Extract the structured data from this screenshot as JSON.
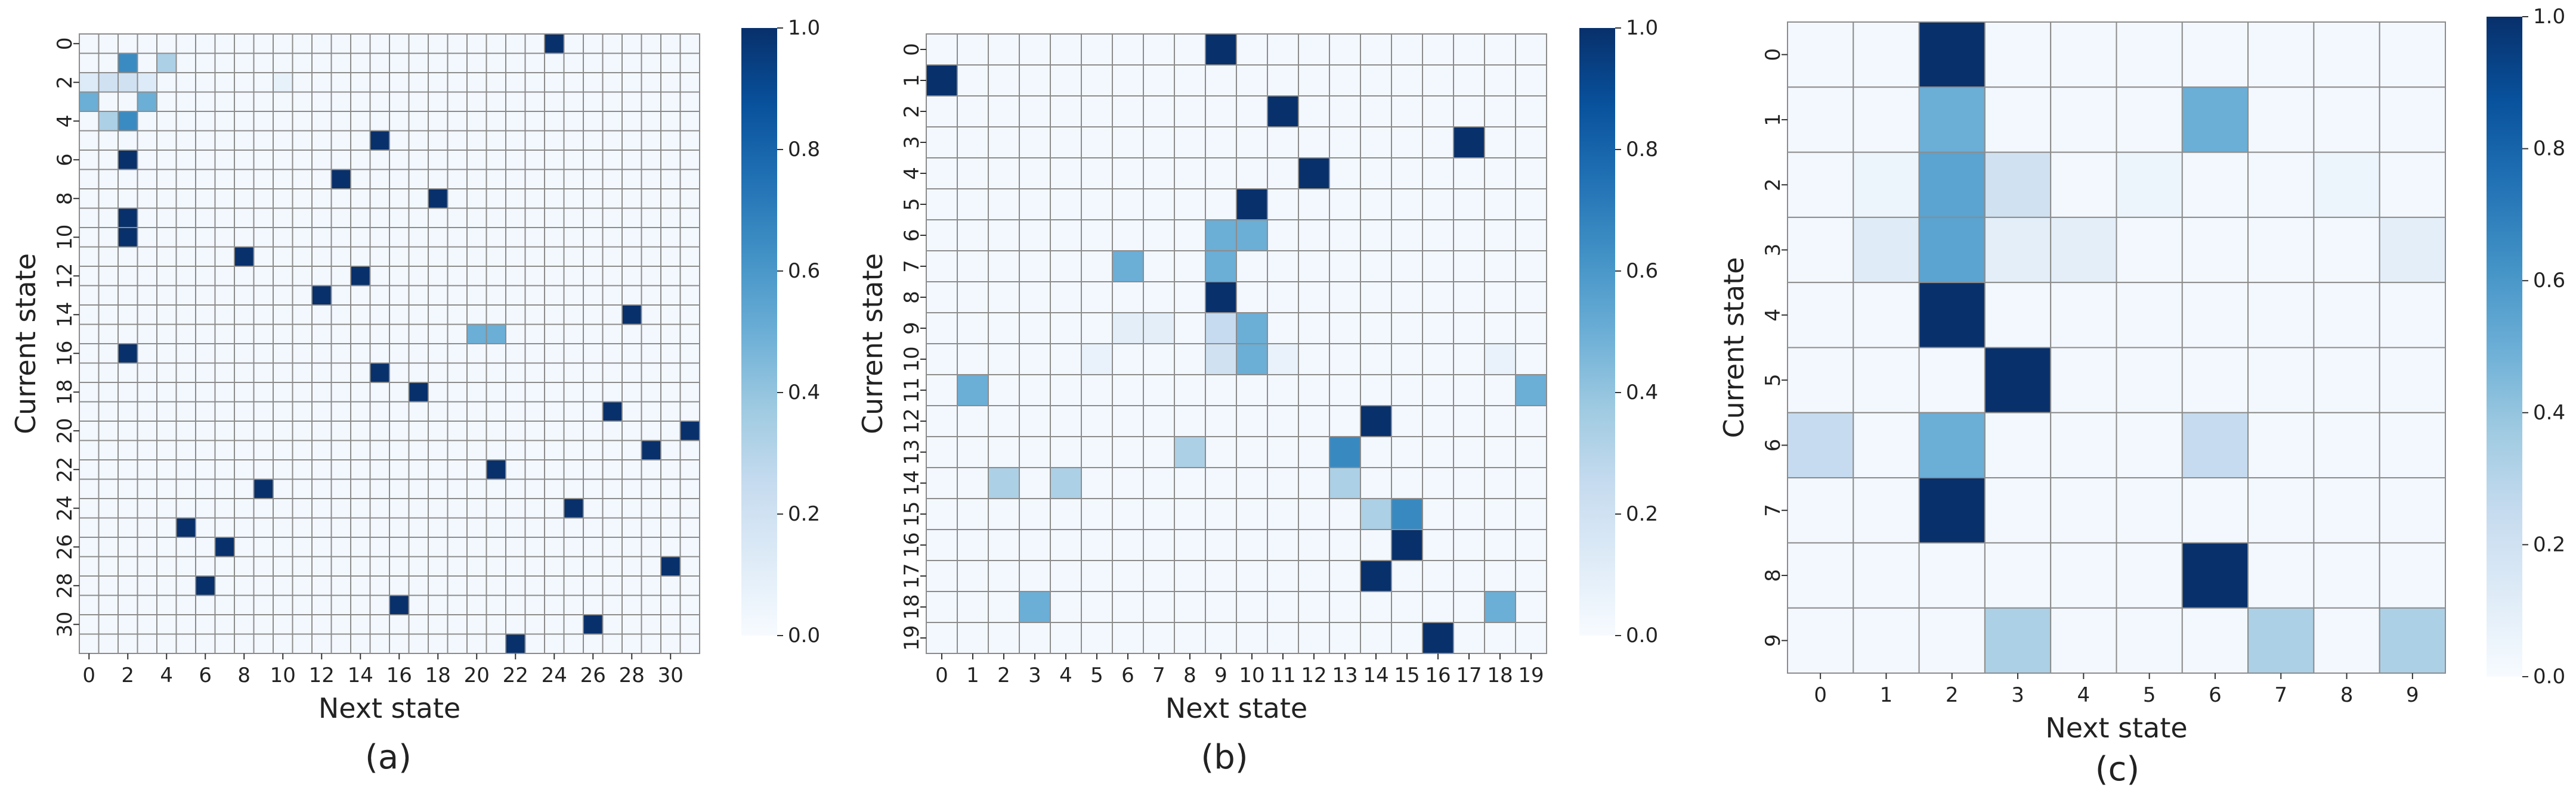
{
  "colors": {
    "low": "#f7fbff",
    "high": "#08306b",
    "cell_border": "#8c8c8c"
  },
  "chart_data": [
    {
      "type": "heatmap",
      "caption": "(a)",
      "xlabel": "Next state",
      "ylabel": "Current state",
      "n_states": 32,
      "tick_step": 2,
      "colorbar": {
        "min": 0.0,
        "max": 1.0,
        "ticks": [
          "0.0",
          "0.2",
          "0.4",
          "0.6",
          "0.8",
          "1.0"
        ]
      },
      "background_value": 0.02,
      "cells": [
        [
          0,
          24,
          1.0
        ],
        [
          1,
          2,
          0.65
        ],
        [
          1,
          4,
          0.33
        ],
        [
          2,
          0,
          0.13
        ],
        [
          2,
          1,
          0.2
        ],
        [
          2,
          2,
          0.2
        ],
        [
          2,
          3,
          0.13
        ],
        [
          2,
          10,
          0.08
        ],
        [
          3,
          0,
          0.5
        ],
        [
          3,
          3,
          0.5
        ],
        [
          4,
          1,
          0.33
        ],
        [
          4,
          2,
          0.65
        ],
        [
          5,
          15,
          1.0
        ],
        [
          6,
          2,
          1.0
        ],
        [
          7,
          13,
          1.0
        ],
        [
          8,
          18,
          1.0
        ],
        [
          9,
          2,
          1.0
        ],
        [
          10,
          2,
          1.0
        ],
        [
          11,
          8,
          1.0
        ],
        [
          12,
          14,
          1.0
        ],
        [
          13,
          12,
          1.0
        ],
        [
          14,
          28,
          1.0
        ],
        [
          15,
          20,
          0.5
        ],
        [
          15,
          21,
          0.5
        ],
        [
          16,
          2,
          1.0
        ],
        [
          17,
          15,
          1.0
        ],
        [
          18,
          17,
          1.0
        ],
        [
          19,
          27,
          1.0
        ],
        [
          20,
          31,
          1.0
        ],
        [
          21,
          29,
          1.0
        ],
        [
          22,
          21,
          1.0
        ],
        [
          23,
          9,
          1.0
        ],
        [
          24,
          25,
          1.0
        ],
        [
          25,
          5,
          1.0
        ],
        [
          26,
          7,
          1.0
        ],
        [
          27,
          30,
          1.0
        ],
        [
          28,
          6,
          1.0
        ],
        [
          29,
          16,
          1.0
        ],
        [
          30,
          26,
          1.0
        ],
        [
          31,
          22,
          1.0
        ]
      ]
    },
    {
      "type": "heatmap",
      "caption": "(b)",
      "xlabel": "Next state",
      "ylabel": "Current state",
      "n_states": 20,
      "tick_step": 1,
      "colorbar": {
        "min": 0.0,
        "max": 1.0,
        "ticks": [
          "0.0",
          "0.2",
          "0.4",
          "0.6",
          "0.8",
          "1.0"
        ]
      },
      "background_value": 0.02,
      "cells": [
        [
          0,
          9,
          1.0
        ],
        [
          1,
          0,
          1.0
        ],
        [
          2,
          11,
          1.0
        ],
        [
          3,
          17,
          1.0
        ],
        [
          4,
          12,
          1.0
        ],
        [
          5,
          10,
          1.0
        ],
        [
          6,
          9,
          0.5
        ],
        [
          6,
          10,
          0.5
        ],
        [
          7,
          6,
          0.5
        ],
        [
          7,
          9,
          0.5
        ],
        [
          8,
          9,
          1.0
        ],
        [
          9,
          6,
          0.1
        ],
        [
          9,
          7,
          0.1
        ],
        [
          9,
          9,
          0.25
        ],
        [
          9,
          10,
          0.5
        ],
        [
          10,
          5,
          0.07
        ],
        [
          10,
          9,
          0.2
        ],
        [
          10,
          10,
          0.5
        ],
        [
          10,
          11,
          0.07
        ],
        [
          10,
          18,
          0.07
        ],
        [
          11,
          1,
          0.5
        ],
        [
          11,
          19,
          0.5
        ],
        [
          12,
          14,
          1.0
        ],
        [
          13,
          8,
          0.33
        ],
        [
          13,
          13,
          0.66
        ],
        [
          14,
          2,
          0.33
        ],
        [
          14,
          4,
          0.33
        ],
        [
          14,
          13,
          0.33
        ],
        [
          15,
          14,
          0.33
        ],
        [
          15,
          15,
          0.66
        ],
        [
          16,
          15,
          1.0
        ],
        [
          17,
          14,
          1.0
        ],
        [
          18,
          3,
          0.5
        ],
        [
          18,
          18,
          0.5
        ],
        [
          19,
          16,
          1.0
        ]
      ]
    },
    {
      "type": "heatmap",
      "caption": "(c)",
      "xlabel": "Next state",
      "ylabel": "Current state",
      "n_states": 10,
      "tick_step": 1,
      "colorbar": {
        "min": 0.0,
        "max": 1.0,
        "ticks": [
          "0.0",
          "0.2",
          "0.4",
          "0.6",
          "0.8",
          "1.0"
        ]
      },
      "background_value": 0.02,
      "cells": [
        [
          0,
          2,
          1.0
        ],
        [
          1,
          2,
          0.5
        ],
        [
          1,
          6,
          0.5
        ],
        [
          2,
          1,
          0.05
        ],
        [
          2,
          2,
          0.55
        ],
        [
          2,
          3,
          0.2
        ],
        [
          2,
          5,
          0.05
        ],
        [
          2,
          8,
          0.05
        ],
        [
          3,
          1,
          0.12
        ],
        [
          3,
          2,
          0.55
        ],
        [
          3,
          3,
          0.1
        ],
        [
          3,
          4,
          0.1
        ],
        [
          3,
          9,
          0.1
        ],
        [
          4,
          2,
          1.0
        ],
        [
          5,
          3,
          1.0
        ],
        [
          6,
          0,
          0.25
        ],
        [
          6,
          2,
          0.5
        ],
        [
          6,
          6,
          0.25
        ],
        [
          7,
          2,
          1.0
        ],
        [
          8,
          6,
          1.0
        ],
        [
          9,
          3,
          0.33
        ],
        [
          9,
          7,
          0.33
        ],
        [
          9,
          9,
          0.33
        ]
      ]
    }
  ]
}
